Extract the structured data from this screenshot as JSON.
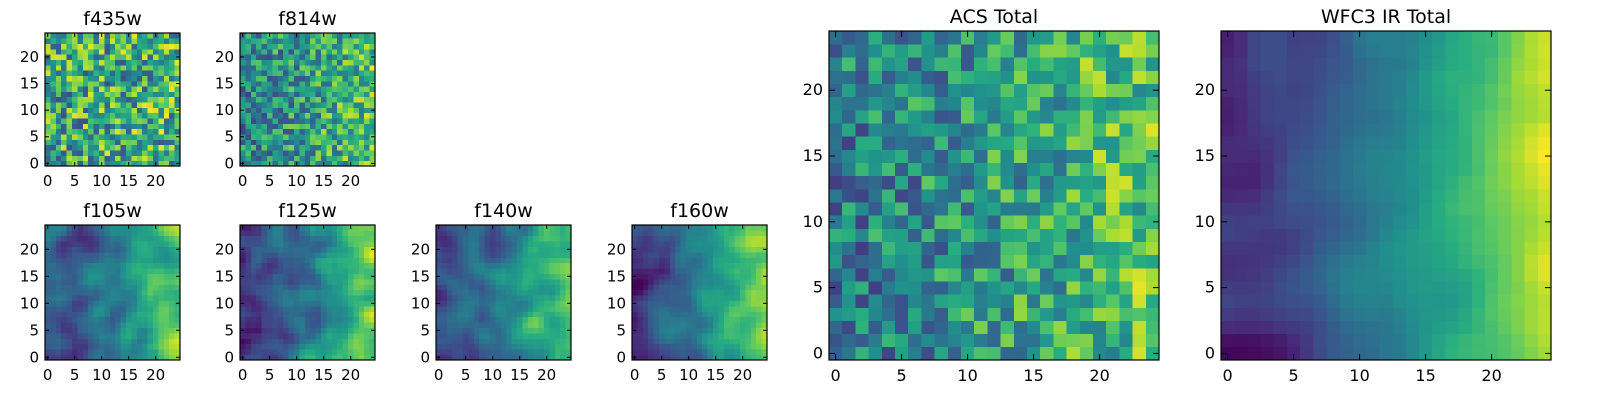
{
  "figure_title": "",
  "chart_data": [
    {
      "type": "heatmap",
      "title": "f435w",
      "colormap": "viridis",
      "grid_size": [
        25,
        25
      ],
      "xlim": [
        -0.5,
        24.5
      ],
      "ylim": [
        -0.5,
        24.5
      ],
      "xticks": [
        "0",
        "5",
        "10",
        "15",
        "20"
      ],
      "yticks": [
        "0",
        "5",
        "10",
        "15",
        "20"
      ],
      "pattern": "noise",
      "seed": 11,
      "gradient": 0.05,
      "value_range": [
        0,
        1
      ]
    },
    {
      "type": "heatmap",
      "title": "f814w",
      "colormap": "viridis",
      "grid_size": [
        25,
        25
      ],
      "xlim": [
        -0.5,
        24.5
      ],
      "ylim": [
        -0.5,
        24.5
      ],
      "xticks": [
        "0",
        "5",
        "10",
        "15",
        "20"
      ],
      "yticks": [
        "0",
        "5",
        "10",
        "15",
        "20"
      ],
      "pattern": "noise",
      "seed": 23,
      "gradient": 0.25,
      "value_range": [
        0,
        1
      ]
    },
    {
      "type": "heatmap",
      "title": "f105w",
      "colormap": "viridis",
      "grid_size": [
        25,
        25
      ],
      "xlim": [
        -0.5,
        24.5
      ],
      "ylim": [
        -0.5,
        24.5
      ],
      "xticks": [
        "0",
        "5",
        "10",
        "15",
        "20"
      ],
      "yticks": [
        "0",
        "5",
        "10",
        "15",
        "20"
      ],
      "pattern": "smooth",
      "seed": 37,
      "gradient": 0.55,
      "value_range": [
        0,
        1
      ]
    },
    {
      "type": "heatmap",
      "title": "f125w",
      "colormap": "viridis",
      "grid_size": [
        25,
        25
      ],
      "xlim": [
        -0.5,
        24.5
      ],
      "ylim": [
        -0.5,
        24.5
      ],
      "xticks": [
        "0",
        "5",
        "10",
        "15",
        "20"
      ],
      "yticks": [
        "0",
        "5",
        "10",
        "15",
        "20"
      ],
      "pattern": "smooth",
      "seed": 41,
      "gradient": 0.55,
      "value_range": [
        0,
        1
      ]
    },
    {
      "type": "heatmap",
      "title": "f140w",
      "colormap": "viridis",
      "grid_size": [
        25,
        25
      ],
      "xlim": [
        -0.5,
        24.5
      ],
      "ylim": [
        -0.5,
        24.5
      ],
      "xticks": [
        "0",
        "5",
        "10",
        "15",
        "20"
      ],
      "yticks": [
        "0",
        "5",
        "10",
        "15",
        "20"
      ],
      "pattern": "smooth",
      "seed": 53,
      "gradient": 0.6,
      "value_range": [
        0,
        1
      ]
    },
    {
      "type": "heatmap",
      "title": "f160w",
      "colormap": "viridis",
      "grid_size": [
        25,
        25
      ],
      "xlim": [
        -0.5,
        24.5
      ],
      "ylim": [
        -0.5,
        24.5
      ],
      "xticks": [
        "0",
        "5",
        "10",
        "15",
        "20"
      ],
      "yticks": [
        "0",
        "5",
        "10",
        "15",
        "20"
      ],
      "pattern": "smooth",
      "seed": 67,
      "gradient": 0.65,
      "value_range": [
        0,
        1
      ]
    },
    {
      "type": "heatmap",
      "title": "ACS Total",
      "colormap": "viridis",
      "grid_size": [
        25,
        25
      ],
      "xlim": [
        -0.5,
        24.5
      ],
      "ylim": [
        -0.5,
        24.5
      ],
      "xticks": [
        "0",
        "5",
        "10",
        "15",
        "20"
      ],
      "yticks": [
        "0",
        "5",
        "10",
        "15",
        "20"
      ],
      "pattern": "noise",
      "seed": 79,
      "gradient": 0.3,
      "value_range": [
        0,
        1
      ]
    },
    {
      "type": "heatmap",
      "title": "WFC3 IR Total",
      "colormap": "viridis",
      "grid_size": [
        25,
        25
      ],
      "xlim": [
        -0.5,
        24.5
      ],
      "ylim": [
        -0.5,
        24.5
      ],
      "xticks": [
        "0",
        "5",
        "10",
        "15",
        "20"
      ],
      "yticks": [
        "0",
        "5",
        "10",
        "15",
        "20"
      ],
      "pattern": "smooth",
      "seed": 97,
      "gradient": 0.75,
      "value_range": [
        0,
        1
      ]
    }
  ]
}
